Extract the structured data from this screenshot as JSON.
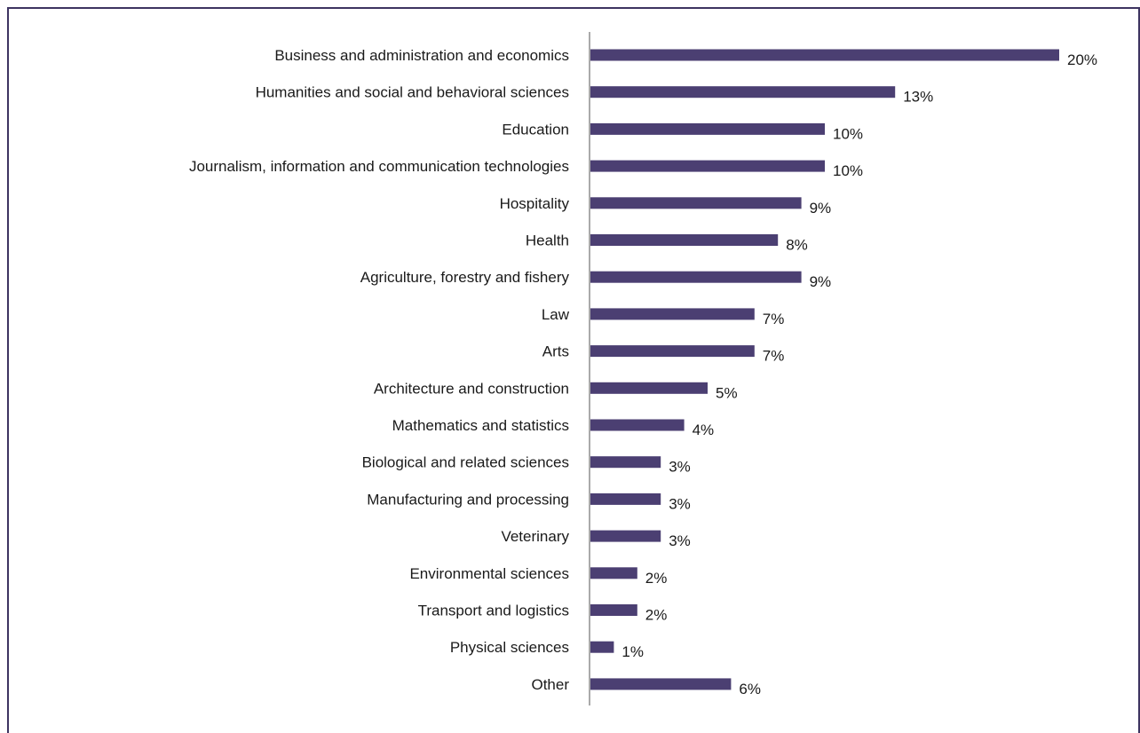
{
  "chart_data": {
    "type": "bar",
    "orientation": "horizontal",
    "categories": [
      "Business and administration and economics",
      "Humanities and social and behavioral sciences",
      "Education",
      "Journalism, information and communication technologies",
      "Hospitality",
      "Health",
      "Agriculture, forestry and fishery",
      "Law",
      "Arts",
      "Architecture and construction",
      "Mathematics and statistics",
      "Biological and related sciences",
      "Manufacturing and processing",
      "Veterinary",
      "Environmental sciences",
      "Transport and logistics",
      "Physical sciences",
      "Other"
    ],
    "values": [
      20,
      13,
      10,
      10,
      9,
      8,
      9,
      7,
      7,
      5,
      4,
      3,
      3,
      3,
      2,
      2,
      1,
      6
    ],
    "value_labels": [
      "20%",
      "13%",
      "10%",
      "10%",
      "9%",
      "8%",
      "9%",
      "7%",
      "7%",
      "5%",
      "4%",
      "3%",
      "3%",
      "3%",
      "2%",
      "2%",
      "1%",
      "6%"
    ],
    "xlim": [
      0,
      20
    ],
    "grid": false,
    "bar_color": "#4b3f72",
    "axis_color": "#aaaaaa",
    "frame_color": "#3d3461"
  }
}
